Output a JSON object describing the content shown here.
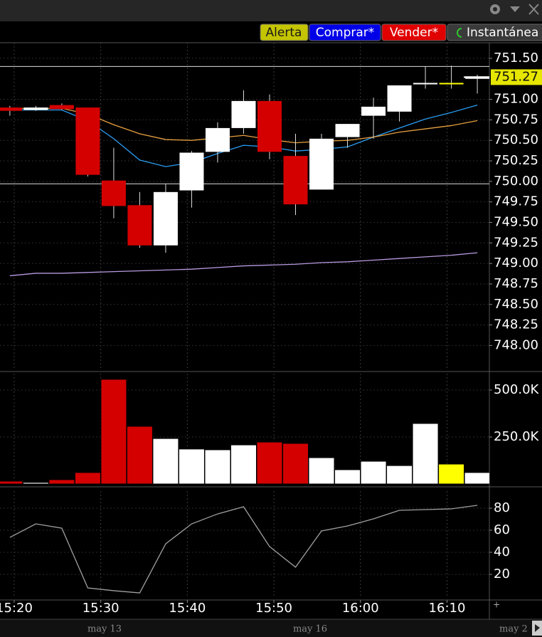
{
  "toolbar": {
    "buttons": [
      "Alerta",
      "Comprar*",
      "Vender*",
      "Instantánea"
    ]
  },
  "date_strip": [
    "may 13",
    "may 16",
    "may 2"
  ],
  "chart_data": [
    {
      "type": "candlestick",
      "x": [
        919.5,
        922.5,
        925.5,
        928.5,
        931.5,
        934.5,
        937.5,
        940.5,
        943.5,
        946.5,
        949.5,
        952.5,
        955.5,
        958.5,
        961.5,
        964.5,
        967.5,
        970.5,
        973.5
      ],
      "open": [
        750.9,
        750.87,
        750.93,
        750.9,
        750.01,
        749.71,
        749.22,
        749.89,
        750.36,
        750.65,
        750.98,
        750.31,
        749.9,
        750.54,
        750.8,
        750.85,
        751.19,
        751.2,
        751.25
      ],
      "high": [
        750.92,
        750.92,
        750.95,
        750.9,
        750.41,
        749.87,
        749.97,
        750.37,
        750.72,
        751.11,
        751.06,
        750.58,
        750.58,
        750.7,
        751.02,
        751.17,
        751.4,
        751.41,
        751.3
      ],
      "low": [
        750.8,
        750.86,
        750.87,
        750.06,
        749.55,
        749.19,
        749.13,
        749.68,
        750.23,
        750.58,
        750.27,
        749.59,
        749.9,
        750.41,
        750.52,
        750.73,
        751.13,
        751.13,
        751.07
      ],
      "close": [
        750.86,
        750.9,
        750.88,
        750.08,
        749.7,
        749.22,
        749.87,
        750.35,
        750.65,
        750.98,
        750.36,
        749.72,
        750.52,
        750.7,
        750.91,
        751.17,
        751.2,
        751.2,
        751.28
      ],
      "colors": [
        "#d40000",
        "#ffffff",
        "#d40000",
        "#d40000",
        "#d40000",
        "#d40000",
        "#ffffff",
        "#ffffff",
        "#ffffff",
        "#ffffff",
        "#d40000",
        "#d40000",
        "#ffffff",
        "#ffffff",
        "#ffffff",
        "#ffffff",
        "#ffffff",
        "#ffff00",
        "#ffffff"
      ],
      "series": [
        {
          "color": "#2a9df4",
          "values": [
            750.87,
            750.87,
            750.87,
            750.74,
            750.52,
            750.26,
            750.18,
            750.23,
            750.34,
            750.44,
            750.42,
            750.37,
            750.39,
            750.42,
            750.54,
            750.65,
            750.76,
            750.84,
            750.93
          ]
        },
        {
          "color": "#e8a040",
          "values": [
            750.89,
            750.89,
            750.89,
            750.82,
            750.69,
            750.58,
            750.51,
            750.5,
            750.53,
            750.56,
            750.51,
            750.47,
            750.49,
            750.5,
            750.54,
            750.6,
            750.64,
            750.68,
            750.74
          ]
        },
        {
          "color": "#b89ae0",
          "values": [
            748.85,
            748.88,
            748.88,
            748.89,
            748.9,
            748.91,
            748.92,
            748.93,
            748.95,
            748.97,
            748.98,
            748.99,
            749.01,
            749.02,
            749.04,
            749.06,
            749.08,
            749.1,
            749.13
          ]
        }
      ],
      "hlines": [
        751.4,
        749.97
      ],
      "last": 751.27,
      "last_color": "#e6e600",
      "ylim": [
        747.7,
        751.69
      ],
      "yticks": [
        {
          "value": 751.5,
          "label": "751.50"
        },
        {
          "value": 751,
          "label": "751.00"
        },
        750.75,
        {
          "value": 750.5,
          "label": "750.50"
        },
        750.25,
        {
          "value": 750,
          "label": "750.00"
        },
        749.75,
        {
          "value": 749.5,
          "label": "749.50"
        },
        749.25,
        {
          "value": 749,
          "label": "749.00"
        },
        748.75,
        {
          "value": 748.5,
          "label": "748.50"
        },
        748.25,
        {
          "value": 748,
          "label": "748.00"
        }
      ],
      "grid": true
    },
    {
      "type": "bar",
      "values": [
        15000,
        8000,
        23000,
        61000,
        557000,
        307000,
        242000,
        186000,
        182000,
        208000,
        223000,
        216000,
        140000,
        76000,
        121000,
        98000,
        322000,
        106000,
        61000
      ],
      "colors": [
        "#d40000",
        "#ffffff",
        "#d40000",
        "#d40000",
        "#d40000",
        "#d40000",
        "#ffffff",
        "#ffffff",
        "#ffffff",
        "#ffffff",
        "#d40000",
        "#d40000",
        "#ffffff",
        "#ffffff",
        "#ffffff",
        "#ffffff",
        "#ffffff",
        "#ffff00",
        "#ffffff"
      ],
      "ylim": [
        0,
        587000
      ],
      "yticks": [
        {
          "value": 500000,
          "label": "500.0K"
        },
        {
          "value": 250000,
          "label": "250.0K"
        }
      ],
      "grid": true
    },
    {
      "type": "line",
      "series": [
        {
          "color": "#a0a0a0",
          "values": [
            53.5,
            65.8,
            61.9,
            7.7,
            5.2,
            3.2,
            47.7,
            65.8,
            74.8,
            81.3,
            45.2,
            26.5,
            59.4,
            63.9,
            70.3,
            78.1,
            78.7,
            79.4,
            82.6
          ]
        }
      ],
      "ylim": [
        -1.3,
        95.5
      ],
      "yticks": [
        80,
        60,
        40,
        20
      ],
      "xlim": [
        918.36,
        974.89
      ],
      "xticks": [
        {
          "value": 920,
          "label": "15:20"
        },
        {
          "value": 930,
          "label": "15:30"
        },
        {
          "value": 940,
          "label": "15:40"
        },
        {
          "value": 950,
          "label": "15:50"
        },
        {
          "value": 960,
          "label": "16:00"
        },
        {
          "value": 970,
          "label": "16:10"
        }
      ],
      "grid": true
    }
  ]
}
